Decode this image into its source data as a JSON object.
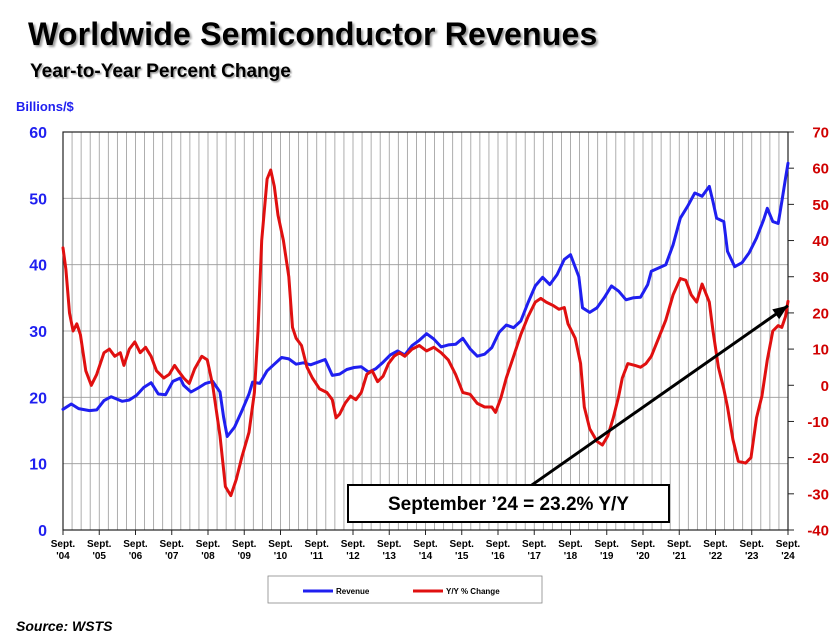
{
  "chart_data": {
    "type": "line",
    "title": "Worldwide Semiconductor Revenues",
    "subtitle": "Year-to-Year Percent Change",
    "y_left_label": "Billions/$",
    "y_left_lim": [
      0,
      60
    ],
    "y_left_ticks": [
      0,
      10,
      20,
      30,
      40,
      50,
      60
    ],
    "y_right_lim": [
      -40,
      70
    ],
    "y_right_ticks": [
      -40,
      -30,
      -20,
      -10,
      0,
      10,
      20,
      30,
      40,
      50,
      60,
      70
    ],
    "x_ticks": [
      {
        "line1": "Sept.",
        "line2": "'04"
      },
      {
        "line1": "Sept.",
        "line2": "'05"
      },
      {
        "line1": "Sept.",
        "line2": "'06"
      },
      {
        "line1": "Sept.",
        "line2": "'07"
      },
      {
        "line1": "Sept.",
        "line2": "'08"
      },
      {
        "line1": "Sept.",
        "line2": "'09"
      },
      {
        "line1": "Sept.",
        "line2": "'10"
      },
      {
        "line1": "Sept.",
        "line2": "'11"
      },
      {
        "line1": "Sept.",
        "line2": "'12"
      },
      {
        "line1": "Sept.",
        "line2": "'13"
      },
      {
        "line1": "Sept.",
        "line2": "'14"
      },
      {
        "line1": "Sept.",
        "line2": "'15"
      },
      {
        "line1": "Sept.",
        "line2": "'16"
      },
      {
        "line1": "Sept.",
        "line2": "'17"
      },
      {
        "line1": "Sept.",
        "line2": "'18"
      },
      {
        "line1": "Sept.",
        "line2": "'19"
      },
      {
        "line1": "Sept.",
        "line2": "'20"
      },
      {
        "line1": "Sept.",
        "line2": "'21"
      },
      {
        "line1": "Sept.",
        "line2": "'22"
      },
      {
        "line1": "Sept.",
        "line2": "'23"
      },
      {
        "line1": "Sept.",
        "line2": "'24"
      }
    ],
    "x_range": [
      2004.67,
      2024.67
    ],
    "grid": true,
    "legend_position": "bottom-center",
    "series": [
      {
        "name": "Revenue",
        "axis": "left",
        "color": "#1f1ff0",
        "points": [
          [
            2004.67,
            18.2
          ],
          [
            2004.9,
            19.0
          ],
          [
            2005.1,
            18.3
          ],
          [
            2005.4,
            18.0
          ],
          [
            2005.6,
            18.1
          ],
          [
            2005.8,
            19.5
          ],
          [
            2006.0,
            20.1
          ],
          [
            2006.3,
            19.4
          ],
          [
            2006.5,
            19.6
          ],
          [
            2006.7,
            20.3
          ],
          [
            2006.9,
            21.5
          ],
          [
            2007.1,
            22.2
          ],
          [
            2007.3,
            20.5
          ],
          [
            2007.5,
            20.4
          ],
          [
            2007.7,
            22.4
          ],
          [
            2007.9,
            22.9
          ],
          [
            2008.0,
            21.8
          ],
          [
            2008.2,
            20.8
          ],
          [
            2008.4,
            21.4
          ],
          [
            2008.6,
            22.1
          ],
          [
            2008.8,
            22.4
          ],
          [
            2009.0,
            20.8
          ],
          [
            2009.1,
            17.0
          ],
          [
            2009.2,
            14.1
          ],
          [
            2009.4,
            15.5
          ],
          [
            2009.6,
            17.9
          ],
          [
            2009.8,
            20.5
          ],
          [
            2009.9,
            22.3
          ],
          [
            2010.1,
            22.1
          ],
          [
            2010.3,
            24.0
          ],
          [
            2010.5,
            25.0
          ],
          [
            2010.7,
            26.0
          ],
          [
            2010.9,
            25.8
          ],
          [
            2011.1,
            25.0
          ],
          [
            2011.3,
            25.2
          ],
          [
            2011.5,
            24.9
          ],
          [
            2011.7,
            25.3
          ],
          [
            2011.9,
            25.7
          ],
          [
            2012.1,
            23.3
          ],
          [
            2012.3,
            23.5
          ],
          [
            2012.5,
            24.2
          ],
          [
            2012.7,
            24.5
          ],
          [
            2012.9,
            24.6
          ],
          [
            2013.1,
            23.8
          ],
          [
            2013.3,
            24.3
          ],
          [
            2013.5,
            25.3
          ],
          [
            2013.7,
            26.4
          ],
          [
            2013.9,
            27.0
          ],
          [
            2014.1,
            26.4
          ],
          [
            2014.3,
            27.8
          ],
          [
            2014.5,
            28.6
          ],
          [
            2014.7,
            29.6
          ],
          [
            2014.9,
            28.8
          ],
          [
            2015.1,
            27.6
          ],
          [
            2015.3,
            27.9
          ],
          [
            2015.5,
            28.0
          ],
          [
            2015.7,
            28.9
          ],
          [
            2015.9,
            27.3
          ],
          [
            2016.1,
            26.2
          ],
          [
            2016.3,
            26.5
          ],
          [
            2016.5,
            27.5
          ],
          [
            2016.7,
            29.8
          ],
          [
            2016.9,
            30.9
          ],
          [
            2017.1,
            30.5
          ],
          [
            2017.3,
            31.5
          ],
          [
            2017.5,
            34.3
          ],
          [
            2017.7,
            36.8
          ],
          [
            2017.9,
            38.1
          ],
          [
            2018.1,
            37.0
          ],
          [
            2018.3,
            38.5
          ],
          [
            2018.5,
            40.8
          ],
          [
            2018.67,
            41.5
          ],
          [
            2018.9,
            38.2
          ],
          [
            2019.0,
            33.5
          ],
          [
            2019.2,
            32.8
          ],
          [
            2019.4,
            33.5
          ],
          [
            2019.6,
            35.0
          ],
          [
            2019.8,
            36.8
          ],
          [
            2020.0,
            36.0
          ],
          [
            2020.2,
            34.7
          ],
          [
            2020.4,
            35.0
          ],
          [
            2020.6,
            35.1
          ],
          [
            2020.8,
            37.0
          ],
          [
            2020.9,
            39.0
          ],
          [
            2021.1,
            39.5
          ],
          [
            2021.3,
            40.0
          ],
          [
            2021.5,
            43.0
          ],
          [
            2021.7,
            47.0
          ],
          [
            2021.9,
            48.8
          ],
          [
            2022.1,
            50.8
          ],
          [
            2022.3,
            50.3
          ],
          [
            2022.5,
            51.8
          ],
          [
            2022.6,
            49.5
          ],
          [
            2022.7,
            47.0
          ],
          [
            2022.9,
            46.5
          ],
          [
            2023.0,
            42.0
          ],
          [
            2023.2,
            39.7
          ],
          [
            2023.4,
            40.3
          ],
          [
            2023.6,
            41.8
          ],
          [
            2023.8,
            44.0
          ],
          [
            2024.0,
            46.8
          ],
          [
            2024.1,
            48.5
          ],
          [
            2024.25,
            46.5
          ],
          [
            2024.4,
            46.2
          ],
          [
            2024.5,
            49.5
          ],
          [
            2024.6,
            53.0
          ],
          [
            2024.67,
            55.3
          ]
        ]
      },
      {
        "name": "Y/Y % Change",
        "axis": "right",
        "color": "#e01010",
        "points": [
          [
            2004.67,
            38.0
          ],
          [
            2004.75,
            32.0
          ],
          [
            2004.85,
            20.0
          ],
          [
            2004.95,
            15.0
          ],
          [
            2005.05,
            17.0
          ],
          [
            2005.15,
            14.0
          ],
          [
            2005.3,
            4.0
          ],
          [
            2005.45,
            0.0
          ],
          [
            2005.6,
            3.0
          ],
          [
            2005.8,
            9.0
          ],
          [
            2005.95,
            10.0
          ],
          [
            2006.1,
            8.0
          ],
          [
            2006.25,
            9.0
          ],
          [
            2006.35,
            5.5
          ],
          [
            2006.5,
            10.0
          ],
          [
            2006.65,
            12.0
          ],
          [
            2006.8,
            9.0
          ],
          [
            2006.95,
            10.5
          ],
          [
            2007.1,
            8.0
          ],
          [
            2007.25,
            4.0
          ],
          [
            2007.45,
            2.0
          ],
          [
            2007.6,
            3.0
          ],
          [
            2007.75,
            5.5
          ],
          [
            2007.85,
            4.0
          ],
          [
            2008.0,
            2.0
          ],
          [
            2008.15,
            0.5
          ],
          [
            2008.3,
            4.5
          ],
          [
            2008.5,
            8.0
          ],
          [
            2008.65,
            7.0
          ],
          [
            2008.8,
            0.0
          ],
          [
            2009.0,
            -14.0
          ],
          [
            2009.15,
            -28.0
          ],
          [
            2009.3,
            -30.5
          ],
          [
            2009.45,
            -26.0
          ],
          [
            2009.6,
            -20.0
          ],
          [
            2009.8,
            -13.0
          ],
          [
            2009.95,
            -2.0
          ],
          [
            2010.05,
            15.0
          ],
          [
            2010.15,
            40.0
          ],
          [
            2010.3,
            57.0
          ],
          [
            2010.4,
            59.5
          ],
          [
            2010.5,
            55.0
          ],
          [
            2010.6,
            47.0
          ],
          [
            2010.75,
            40.0
          ],
          [
            2010.9,
            30.0
          ],
          [
            2011.0,
            16.0
          ],
          [
            2011.1,
            13.0
          ],
          [
            2011.25,
            11.0
          ],
          [
            2011.4,
            5.0
          ],
          [
            2011.55,
            2.0
          ],
          [
            2011.75,
            -1.0
          ],
          [
            2011.95,
            -2.0
          ],
          [
            2012.1,
            -4.0
          ],
          [
            2012.2,
            -9.0
          ],
          [
            2012.3,
            -8.0
          ],
          [
            2012.45,
            -5.0
          ],
          [
            2012.6,
            -3.0
          ],
          [
            2012.75,
            -4.0
          ],
          [
            2012.9,
            -2.0
          ],
          [
            2013.05,
            3.0
          ],
          [
            2013.2,
            4.0
          ],
          [
            2013.35,
            1.0
          ],
          [
            2013.5,
            2.5
          ],
          [
            2013.65,
            6.0
          ],
          [
            2013.8,
            8.0
          ],
          [
            2013.95,
            9.0
          ],
          [
            2014.1,
            8.0
          ],
          [
            2014.3,
            10.0
          ],
          [
            2014.5,
            11.0
          ],
          [
            2014.7,
            9.5
          ],
          [
            2014.9,
            10.5
          ],
          [
            2015.1,
            9.0
          ],
          [
            2015.3,
            7.0
          ],
          [
            2015.5,
            3.0
          ],
          [
            2015.7,
            -2.0
          ],
          [
            2015.9,
            -2.5
          ],
          [
            2016.1,
            -5.0
          ],
          [
            2016.3,
            -6.0
          ],
          [
            2016.5,
            -6.0
          ],
          [
            2016.6,
            -7.5
          ],
          [
            2016.75,
            -3.5
          ],
          [
            2016.9,
            2.0
          ],
          [
            2017.1,
            8.0
          ],
          [
            2017.3,
            14.0
          ],
          [
            2017.5,
            19.0
          ],
          [
            2017.7,
            23.0
          ],
          [
            2017.85,
            24.0
          ],
          [
            2018.0,
            23.0
          ],
          [
            2018.2,
            22.0
          ],
          [
            2018.35,
            21.0
          ],
          [
            2018.5,
            21.5
          ],
          [
            2018.6,
            17.0
          ],
          [
            2018.8,
            13.0
          ],
          [
            2018.95,
            6.0
          ],
          [
            2019.05,
            -6.0
          ],
          [
            2019.2,
            -12.0
          ],
          [
            2019.4,
            -15.5
          ],
          [
            2019.55,
            -16.5
          ],
          [
            2019.7,
            -14.0
          ],
          [
            2019.85,
            -9.0
          ],
          [
            2020.0,
            -3.0
          ],
          [
            2020.1,
            2.0
          ],
          [
            2020.25,
            6.0
          ],
          [
            2020.45,
            5.5
          ],
          [
            2020.6,
            5.0
          ],
          [
            2020.75,
            6.0
          ],
          [
            2020.9,
            8.0
          ],
          [
            2021.1,
            13.0
          ],
          [
            2021.3,
            18.0
          ],
          [
            2021.5,
            25.0
          ],
          [
            2021.7,
            29.5
          ],
          [
            2021.85,
            29.0
          ],
          [
            2022.0,
            25.0
          ],
          [
            2022.15,
            23.0
          ],
          [
            2022.3,
            28.0
          ],
          [
            2022.5,
            23.0
          ],
          [
            2022.6,
            15.0
          ],
          [
            2022.75,
            5.0
          ],
          [
            2022.9,
            -1.0
          ],
          [
            2023.0,
            -6.0
          ],
          [
            2023.15,
            -15.0
          ],
          [
            2023.3,
            -21.0
          ],
          [
            2023.5,
            -21.5
          ],
          [
            2023.65,
            -20.0
          ],
          [
            2023.8,
            -9.0
          ],
          [
            2023.95,
            -3.0
          ],
          [
            2024.1,
            7.0
          ],
          [
            2024.25,
            15.0
          ],
          [
            2024.4,
            16.5
          ],
          [
            2024.5,
            16.0
          ],
          [
            2024.6,
            19.0
          ],
          [
            2024.67,
            23.2
          ]
        ]
      }
    ],
    "annotation": {
      "text": "September ’24 = 23.2% Y/Y",
      "arrow_from": [
        2017.4,
        -29.0
      ],
      "arrow_to": [
        2024.67,
        22.0
      ]
    }
  },
  "source": "Source: WSTS",
  "colors": {
    "revenue": "#1f1ff0",
    "yoy": "#e01010",
    "grid": "#999999"
  }
}
